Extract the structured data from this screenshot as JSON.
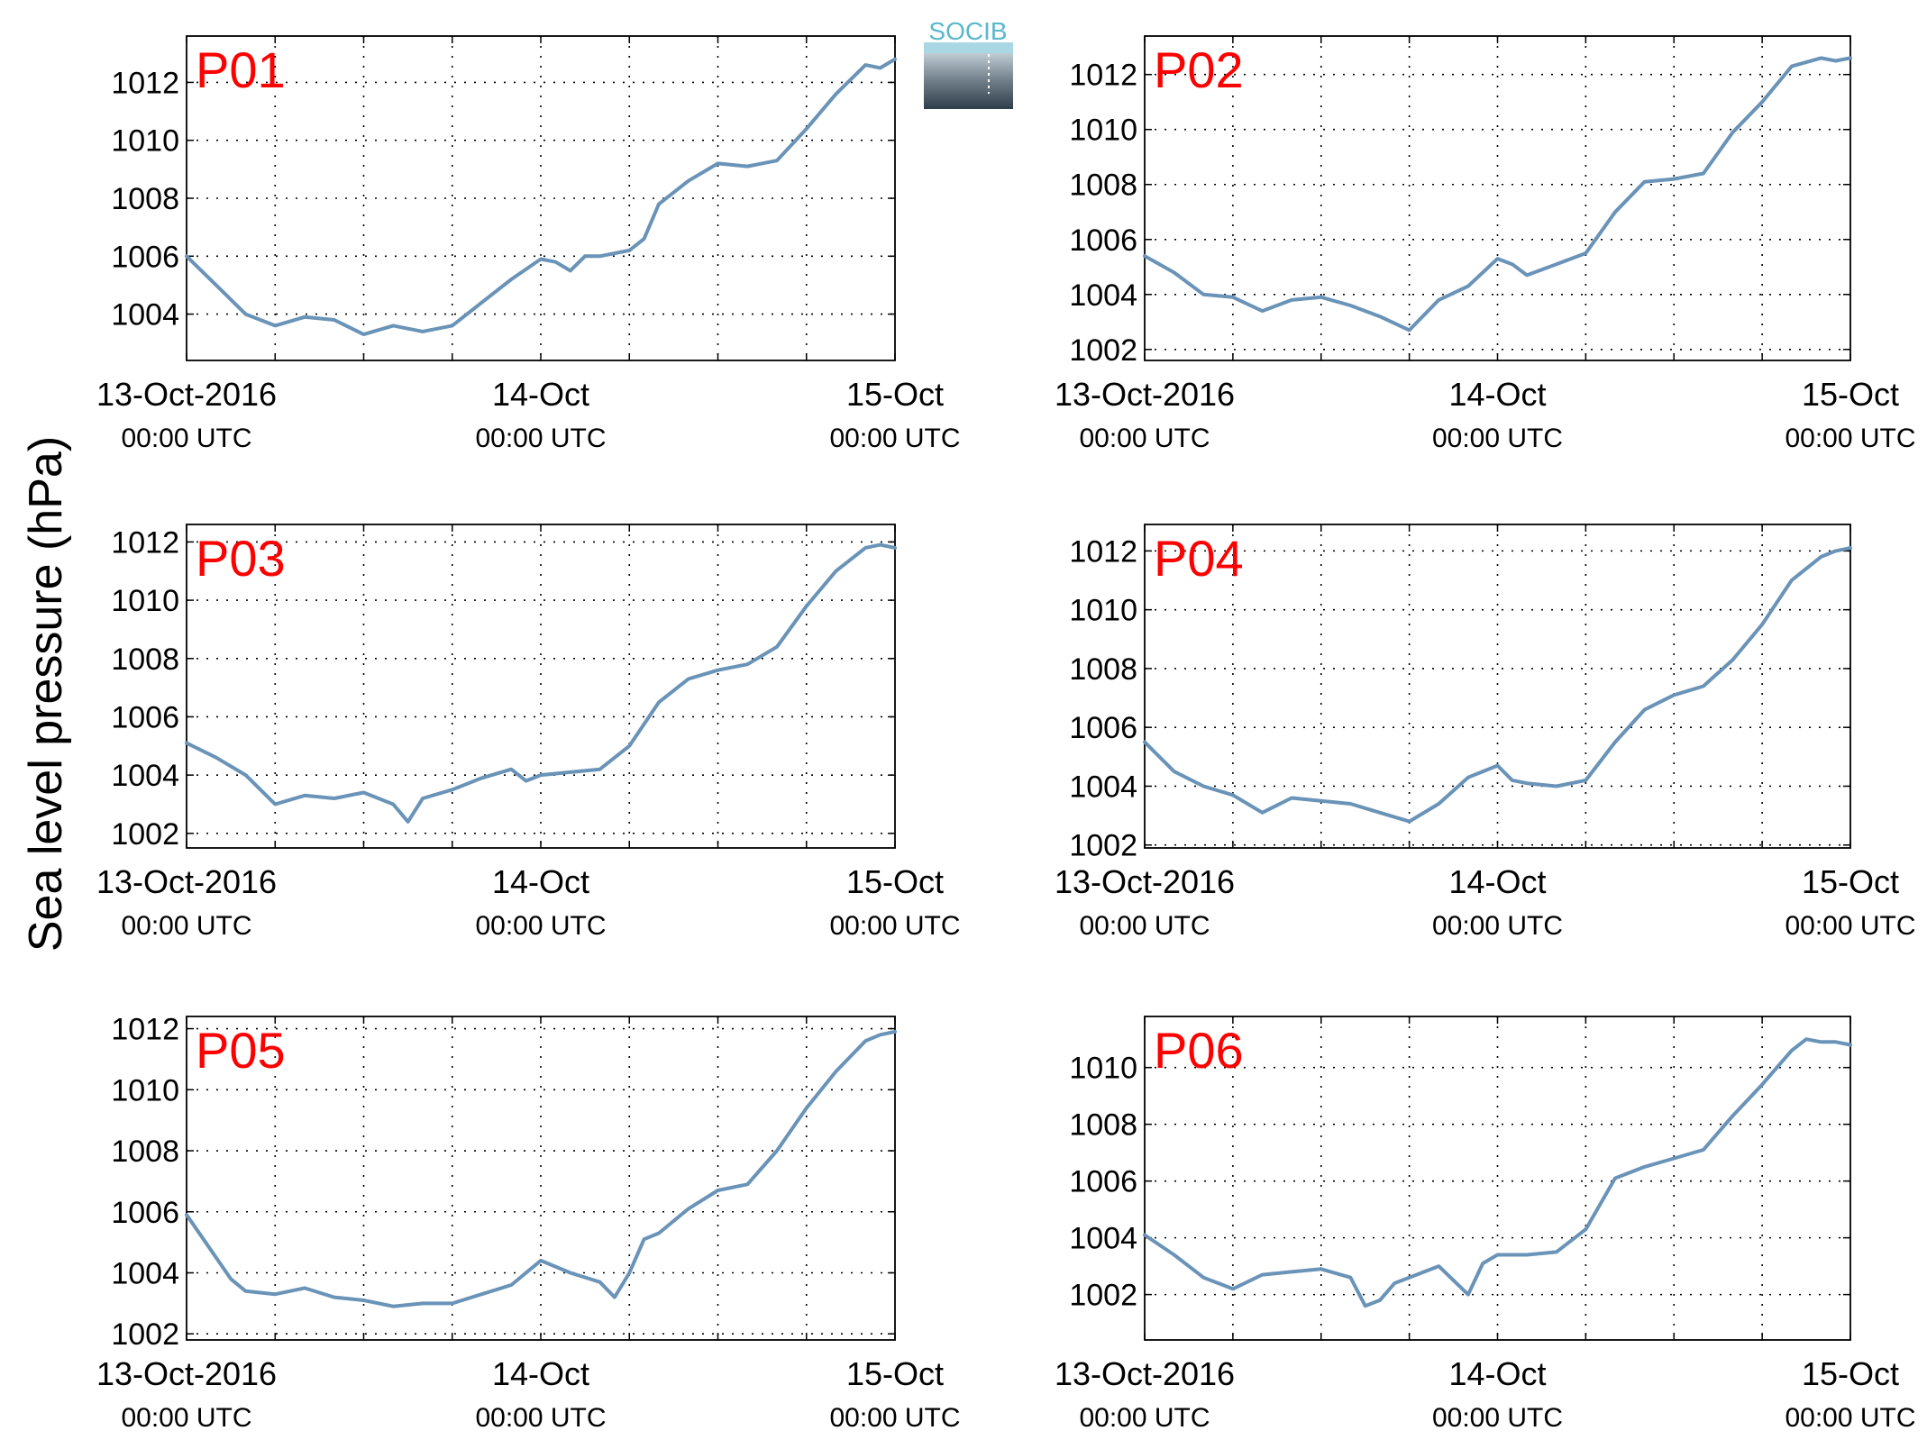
{
  "ylabel": "Sea level pressure (hPa)",
  "logo_text": "SOCIB",
  "colors": {
    "series": "#6a93b8",
    "panel_label": "#ff0000",
    "axis": "#000000",
    "grid": "#000000"
  },
  "x_tick_labels": [
    {
      "line1": "13-Oct-2016",
      "line2": "00:00 UTC"
    },
    {
      "line1": "14-Oct",
      "line2": "00:00 UTC"
    },
    {
      "line1": "15-Oct",
      "line2": "00:00 UTC"
    }
  ],
  "chart_data": [
    {
      "type": "line",
      "label": "P01",
      "xlim": [
        0,
        48
      ],
      "ylim": [
        1002.4,
        1013.6
      ],
      "yticks": [
        1004,
        1006,
        1008,
        1010,
        1012
      ],
      "series": [
        {
          "x": [
            0,
            2,
            4,
            6,
            8,
            10,
            12,
            14,
            16,
            18,
            20,
            22,
            24,
            25,
            26,
            27,
            28,
            30,
            31,
            32,
            34,
            36,
            38,
            40,
            42,
            44,
            46,
            47,
            48
          ],
          "y": [
            1006,
            1005,
            1004,
            1003.6,
            1003.9,
            1003.8,
            1003.3,
            1003.6,
            1003.4,
            1003.6,
            1004.4,
            1005.2,
            1005.9,
            1005.8,
            1005.5,
            1006,
            1006,
            1006.2,
            1006.6,
            1007.8,
            1008.6,
            1009.2,
            1009.1,
            1009.3,
            1010.4,
            1011.6,
            1012.6,
            1012.5,
            1012.8
          ]
        }
      ]
    },
    {
      "type": "line",
      "label": "P02",
      "xlim": [
        0,
        48
      ],
      "ylim": [
        1001.6,
        1013.4
      ],
      "yticks": [
        1002,
        1004,
        1006,
        1008,
        1010,
        1012
      ],
      "series": [
        {
          "x": [
            0,
            2,
            4,
            6,
            8,
            10,
            12,
            14,
            16,
            18,
            20,
            22,
            24,
            25,
            26,
            28,
            30,
            32,
            34,
            36,
            38,
            40,
            42,
            44,
            46,
            47,
            48
          ],
          "y": [
            1005.4,
            1004.8,
            1004,
            1003.9,
            1003.4,
            1003.8,
            1003.9,
            1003.6,
            1003.2,
            1002.7,
            1003.8,
            1004.3,
            1005.3,
            1005.1,
            1004.7,
            1005.1,
            1005.5,
            1007,
            1008.1,
            1008.2,
            1008.4,
            1009.9,
            1011,
            1012.3,
            1012.6,
            1012.5,
            1012.6
          ]
        }
      ]
    },
    {
      "type": "line",
      "label": "P03",
      "xlim": [
        0,
        48
      ],
      "ylim": [
        1001.5,
        1012.6
      ],
      "yticks": [
        1002,
        1004,
        1006,
        1008,
        1010,
        1012
      ],
      "series": [
        {
          "x": [
            0,
            2,
            4,
            6,
            8,
            10,
            12,
            14,
            15,
            16,
            18,
            20,
            22,
            23,
            24,
            26,
            28,
            30,
            32,
            34,
            36,
            38,
            40,
            42,
            44,
            46,
            47,
            48
          ],
          "y": [
            1005.1,
            1004.6,
            1004,
            1003,
            1003.3,
            1003.2,
            1003.4,
            1003,
            1002.4,
            1003.2,
            1003.5,
            1003.9,
            1004.2,
            1003.8,
            1004,
            1004.1,
            1004.2,
            1005,
            1006.5,
            1007.3,
            1007.6,
            1007.8,
            1008.4,
            1009.8,
            1011,
            1011.8,
            1011.9,
            1011.8
          ]
        }
      ]
    },
    {
      "type": "line",
      "label": "P04",
      "xlim": [
        0,
        48
      ],
      "ylim": [
        1001.9,
        1012.9
      ],
      "yticks": [
        1002,
        1004,
        1006,
        1008,
        1010,
        1012
      ],
      "series": [
        {
          "x": [
            0,
            2,
            4,
            6,
            8,
            10,
            12,
            14,
            16,
            18,
            20,
            22,
            24,
            25,
            26,
            28,
            30,
            32,
            34,
            36,
            38,
            40,
            42,
            44,
            46,
            47,
            48
          ],
          "y": [
            1005.5,
            1004.5,
            1004,
            1003.7,
            1003.1,
            1003.6,
            1003.5,
            1003.4,
            1003.1,
            1002.8,
            1003.4,
            1004.3,
            1004.7,
            1004.2,
            1004.1,
            1004,
            1004.2,
            1005.5,
            1006.6,
            1007.1,
            1007.4,
            1008.3,
            1009.5,
            1011,
            1011.8,
            1012,
            1012.1
          ]
        }
      ]
    },
    {
      "type": "line",
      "label": "P05",
      "xlim": [
        0,
        48
      ],
      "ylim": [
        1001.8,
        1012.4
      ],
      "yticks": [
        1002,
        1004,
        1006,
        1008,
        1010,
        1012
      ],
      "series": [
        {
          "x": [
            0,
            1,
            2,
            3,
            4,
            6,
            8,
            10,
            12,
            14,
            16,
            18,
            20,
            22,
            24,
            26,
            28,
            29,
            30,
            31,
            32,
            34,
            36,
            38,
            40,
            42,
            44,
            46,
            47,
            48
          ],
          "y": [
            1005.9,
            1005.2,
            1004.5,
            1003.8,
            1003.4,
            1003.3,
            1003.5,
            1003.2,
            1003.1,
            1002.9,
            1003,
            1003,
            1003.3,
            1003.6,
            1004.4,
            1004,
            1003.7,
            1003.2,
            1004,
            1005.1,
            1005.3,
            1006.1,
            1006.7,
            1006.9,
            1008,
            1009.4,
            1010.6,
            1011.6,
            1011.8,
            1011.9
          ]
        }
      ]
    },
    {
      "type": "line",
      "label": "P06",
      "xlim": [
        0,
        48
      ],
      "ylim": [
        1000.4,
        1011.8
      ],
      "yticks": [
        1002,
        1004,
        1006,
        1008,
        1010
      ],
      "series": [
        {
          "x": [
            0,
            2,
            4,
            6,
            8,
            10,
            12,
            14,
            15,
            16,
            17,
            18,
            20,
            22,
            23,
            24,
            26,
            28,
            30,
            32,
            34,
            36,
            38,
            40,
            42,
            44,
            45,
            46,
            47,
            48
          ],
          "y": [
            1004.1,
            1003.4,
            1002.6,
            1002.2,
            1002.7,
            1002.8,
            1002.9,
            1002.6,
            1001.6,
            1001.8,
            1002.4,
            1002.6,
            1003,
            1002,
            1003.1,
            1003.4,
            1003.4,
            1003.5,
            1004.3,
            1006.1,
            1006.5,
            1006.8,
            1007.1,
            1008.3,
            1009.4,
            1010.6,
            1011,
            1010.9,
            1010.9,
            1010.8
          ]
        }
      ]
    }
  ]
}
